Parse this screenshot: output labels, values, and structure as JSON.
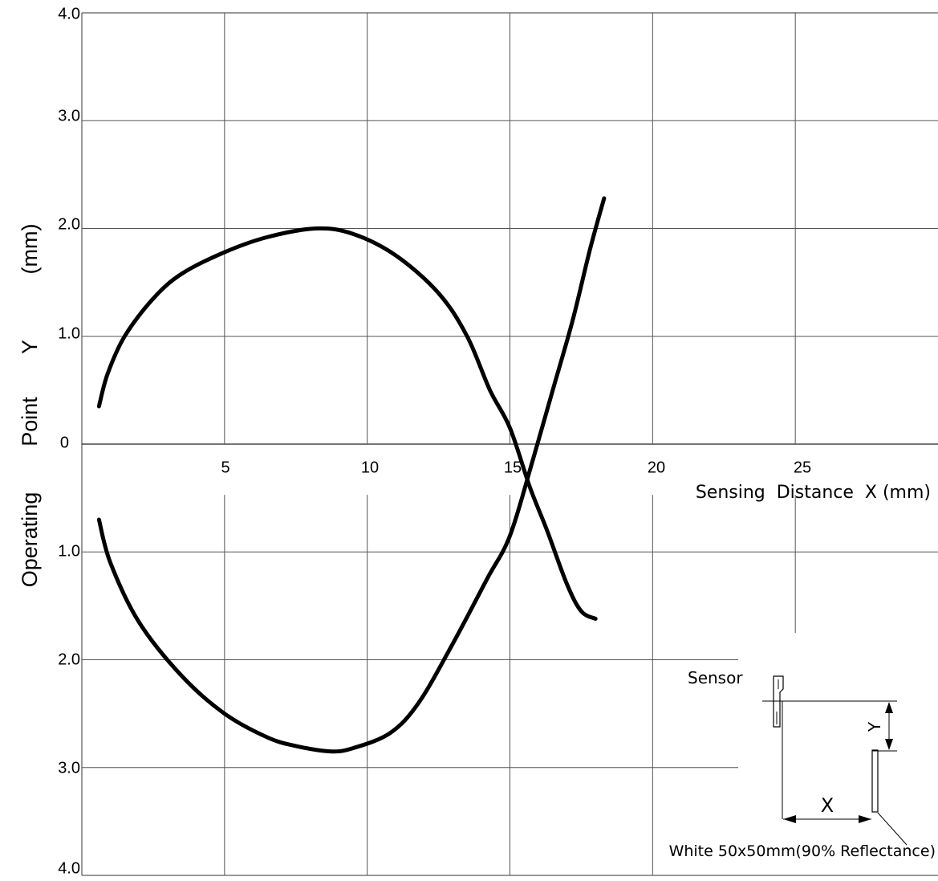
{
  "chart_data": {
    "type": "line",
    "title": "",
    "xlabel": "Sensing  Distance  X (mm)",
    "ylabel_parts": [
      "Operating",
      "Point",
      "Y",
      "(mm)"
    ],
    "x_ticks": [
      "5",
      "10",
      "15",
      "20",
      "25"
    ],
    "y_ticks_top": [
      "4.0",
      "3.0",
      "2.0",
      "1.0"
    ],
    "y_tick_zero": "0",
    "y_ticks_bottom": [
      "1.0",
      "2.0",
      "3.0",
      "4.0"
    ],
    "xlim": [
      0,
      30
    ],
    "ylim": [
      -4,
      4
    ],
    "grid": true,
    "series": [
      {
        "x": [
          0.6,
          0.9,
          1.5,
          2.5,
          3.5,
          5,
          6.5,
          8.2,
          9.5,
          11,
          12.5,
          13.5,
          14.3,
          15,
          15.7,
          16.3,
          17,
          17.5,
          18
        ],
        "y": [
          0.35,
          0.65,
          1.0,
          1.35,
          1.58,
          1.78,
          1.92,
          2.0,
          1.95,
          1.75,
          1.4,
          1.0,
          0.5,
          0.15,
          -0.4,
          -0.8,
          -1.3,
          -1.55,
          -1.62
        ]
      },
      {
        "x": [
          0.6,
          1,
          2,
          3.5,
          5,
          6.5,
          7.5,
          8.7,
          9.5,
          10.8,
          11.8,
          13,
          14.2,
          15,
          15.8,
          16.5,
          17.2,
          17.8,
          18.3
        ],
        "y": [
          -0.7,
          -1.1,
          -1.65,
          -2.15,
          -2.5,
          -2.72,
          -2.8,
          -2.85,
          -2.82,
          -2.68,
          -2.4,
          -1.85,
          -1.25,
          -0.85,
          -0.15,
          0.5,
          1.15,
          1.8,
          2.28
        ]
      }
    ],
    "inset": {
      "sensor_label": "Sensor",
      "x_label": "X",
      "y_label": "Y",
      "target_label": "White 50x50mm(90% Reflectance)"
    }
  }
}
